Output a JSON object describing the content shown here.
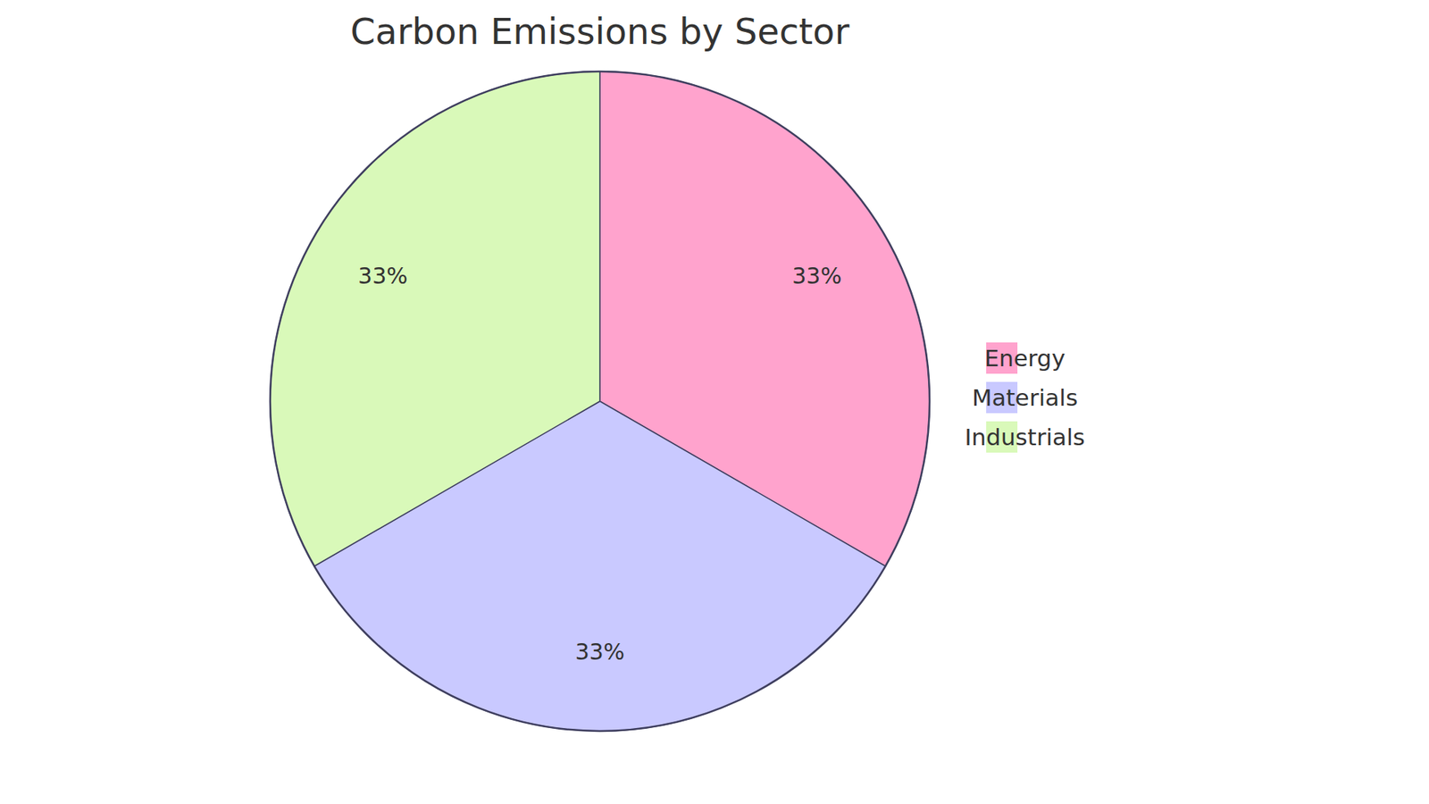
{
  "chart_data": {
    "type": "pie",
    "title": "Carbon Emissions by Sector",
    "categories": [
      "Energy",
      "Materials",
      "Industrials"
    ],
    "values": [
      33,
      33,
      33
    ],
    "value_labels": [
      "33%",
      "33%",
      "33%"
    ],
    "colors": [
      "#ffa3cd",
      "#c9c9ff",
      "#d9f9b9"
    ],
    "data_labels": true,
    "legend": "right"
  }
}
